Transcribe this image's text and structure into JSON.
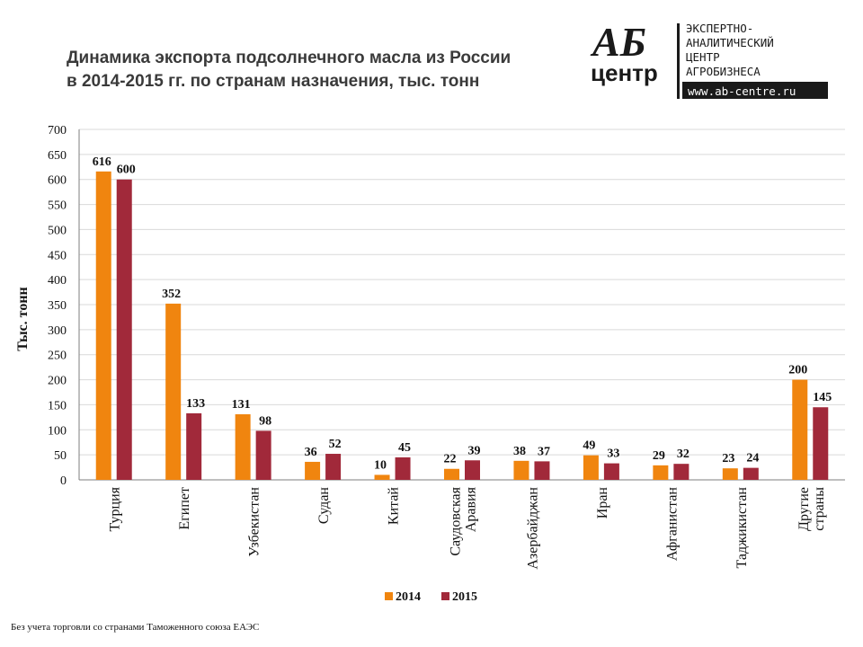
{
  "header": {
    "title_line1": "Динамика экспорта подсолнечного масла из России",
    "title_line2": "в 2014-2015 гг. по странам назначения, тыс. тонн"
  },
  "logo": {
    "mark_top": "АБ",
    "mark_bottom": "центр",
    "lines": [
      "ЭКСПЕРТНО-",
      "АНАЛИТИЧЕСКИЙ",
      "ЦЕНТР",
      "АГРОБИЗНЕСА"
    ],
    "url": "www.ab-centre.ru"
  },
  "footnote": "Без учета торговли со странами Таможенного союза ЕАЭС",
  "colors": {
    "series_2014": "#F0850F",
    "series_2015": "#A1293A",
    "grid": "#D9D9D9",
    "axis": "#7F7F7F"
  },
  "chart_data": {
    "type": "bar",
    "title": "Динамика экспорта подсолнечного масла из России в 2014-2015 гг. по странам назначения, тыс. тонн",
    "xlabel": "",
    "ylabel": "Тыс. тонн",
    "ylim": [
      0,
      700
    ],
    "yticks": [
      0,
      50,
      100,
      150,
      200,
      250,
      300,
      350,
      400,
      450,
      500,
      550,
      600,
      650,
      700
    ],
    "grid": true,
    "legend_position": "bottom",
    "categories": [
      [
        "Турция"
      ],
      [
        "Египет"
      ],
      [
        "Узбекистан"
      ],
      [
        "Судан"
      ],
      [
        "Китай"
      ],
      [
        "Саудовская",
        "Аравия"
      ],
      [
        "Азербайджан"
      ],
      [
        "Иран"
      ],
      [
        "Афганистан"
      ],
      [
        "Таджикистан"
      ],
      [
        "Другие",
        "страны"
      ]
    ],
    "series": [
      {
        "name": "2014",
        "values": [
          616,
          352,
          131,
          36,
          10,
          22,
          38,
          49,
          29,
          23,
          200
        ]
      },
      {
        "name": "2015",
        "values": [
          600,
          133,
          98,
          52,
          45,
          39,
          37,
          33,
          32,
          24,
          145
        ]
      }
    ]
  }
}
